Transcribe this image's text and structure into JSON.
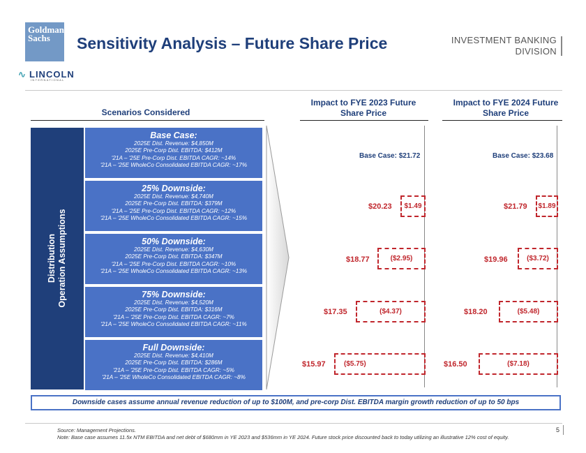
{
  "header": {
    "logo_lines": [
      "Goldman",
      "Sachs"
    ],
    "title": "Sensitivity Analysis – Future Share Price",
    "division_line1": "INVESTMENT BANKING",
    "division_line2": "DIVISION",
    "partner_logo": "LINCOLN",
    "partner_sub": "INTERNATIONAL"
  },
  "columns": {
    "scenarios_title": "Scenarios Considered",
    "fye2023_line1": "Impact to FYE 2023 Future",
    "fye2023_line2": "Share Price",
    "fye2024_line1": "Impact to FYE 2024 Future",
    "fye2024_line2": "Share Price"
  },
  "side_label": {
    "line1": "Distribution",
    "line2": "Operation Assumptions"
  },
  "scenarios": [
    {
      "title": "Base Case:",
      "revenue": "2025E Dist. Revenue: $4,850M",
      "ebitda": "2025E Pre-Corp Dist. EBITDA: $412M",
      "cagr": "'21A – '25E Pre-Corp Dist. EBITDA CAGR: ~14%",
      "wholeco": "'21A – '25E WholeCo Consolidated EBITDA CAGR: ~17%"
    },
    {
      "title": "25% Downside:",
      "revenue": "2025E Dist. Revenue: $4,740M",
      "ebitda": "2025E Pre-Corp Dist. EBITDA: $379M",
      "cagr": "'21A – '25E Pre-Corp Dist. EBITDA CAGR: ~12%",
      "wholeco": "'21A – '25E WholeCo Consolidated EBITDA CAGR: ~15%"
    },
    {
      "title": "50% Downside:",
      "revenue": "2025E Dist. Revenue: $4,630M",
      "ebitda": "2025E Pre-Corp Dist. EBITDA: $347M",
      "cagr": "'21A – '25E Pre-Corp Dist. EBITDA CAGR: ~10%",
      "wholeco": "'21A – '25E WholeCo Consolidated EBITDA CAGR: ~13%"
    },
    {
      "title": "75% Downside:",
      "revenue": "2025E Dist. Revenue: $4,520M",
      "ebitda": "2025E Pre-Corp Dist. EBITDA: $316M",
      "cagr": "'21A – '25E Pre-Corp Dist. EBITDA CAGR: ~7%",
      "wholeco": "'21A – '25E WholeCo Consolidated EBITDA CAGR: ~11%"
    },
    {
      "title": "Full Downside:",
      "revenue": "2025E Dist. Revenue: $4,410M",
      "ebitda": "2025E Pre-Corp Dist. EBITDA: $286M",
      "cagr": "'21A – '25E Pre-Corp Dist. EBITDA CAGR: ~5%",
      "wholeco": "'21A – '25E WholeCo Consolidated EBITDA CAGR: ~8%"
    }
  ],
  "fye2023": {
    "base_label": "Base Case: $21.72",
    "rows": [
      {
        "price": "$20.23",
        "impact": "$1.49"
      },
      {
        "price": "$18.77",
        "impact": "($2.95)"
      },
      {
        "price": "$17.35",
        "impact": "($4.37)"
      },
      {
        "price": "$15.97",
        "impact": "($5.75)"
      }
    ]
  },
  "fye2024": {
    "base_label": "Base Case: $23.68",
    "rows": [
      {
        "price": "$21.79",
        "impact": "$1.89"
      },
      {
        "price": "$19.96",
        "impact": "($3.72)"
      },
      {
        "price": "$18.20",
        "impact": "($5.48)"
      },
      {
        "price": "$16.50",
        "impact": "($7.18)"
      }
    ]
  },
  "footer": {
    "assumption_note": "Downside cases assume annual revenue reduction of up to $100M, and pre-corp Dist. EBITDA margin growth reduction of up to 50 bps",
    "source": "Source: Management Projections.",
    "note": "Note: Base case assumes 11.5x NTM EBITDA and net debt of $680mm in YE 2023 and $536mm in YE 2024. Future stock price discounted back to today utilizing an illustrative 12% cost of equity.",
    "page_number": "5"
  },
  "colors": {
    "navy": "#1f3f7a",
    "scenario_blue": "#4a72c6",
    "impact_red": "#c0262c"
  }
}
